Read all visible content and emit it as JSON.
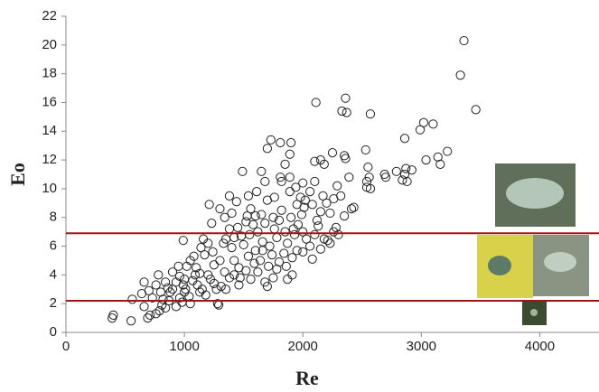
{
  "chart_data": {
    "type": "scatter",
    "x_label": "Re",
    "y_label": "Eo",
    "x": [
      3360,
      3330,
      3460,
      2110,
      2360,
      2330,
      2370,
      2570,
      3020,
      3100,
      2990,
      2860,
      3220,
      3140,
      3160,
      3040,
      1730,
      1700,
      1810,
      1900,
      1650,
      1810,
      1850,
      1890,
      2100,
      2150,
      2180,
      2250,
      2350,
      2360,
      2530,
      2550,
      2560,
      2540,
      2570,
      2540,
      2690,
      2700,
      2790,
      2860,
      2870,
      2920,
      2840,
      2880,
      2390,
      2290,
      2320,
      2410,
      1490,
      1540,
      1610,
      1680,
      1760,
      1890,
      1940,
      1980,
      2010,
      2060,
      2170,
      2200,
      2260,
      2230,
      2120,
      2280,
      2350,
      2430,
      400,
      390,
      550,
      560,
      640,
      690,
      660,
      710,
      760,
      790,
      810,
      840,
      870,
      660,
      760,
      800,
      840,
      780,
      880,
      900,
      930,
      960,
      990,
      1000,
      1040,
      1050,
      980,
      930,
      1010,
      1070,
      1100,
      1130,
      1080,
      1050,
      990,
      1170,
      1200,
      1220,
      1250,
      1270,
      1280,
      1310,
      1340,
      1300,
      1240,
      1200,
      1230,
      1210,
      1300,
      1340,
      1380,
      1400,
      1440,
      1450,
      1380,
      1350,
      1400,
      1420,
      1460,
      1380,
      1470,
      1520,
      1540,
      1500,
      1550,
      1580,
      1600,
      1560,
      1650,
      1620,
      1660,
      1600,
      1640,
      1620,
      1680,
      1710,
      1740,
      1720,
      1780,
      1760,
      1800,
      1820,
      1850,
      1870,
      1840,
      1800,
      1780,
      1860,
      1910,
      1930,
      1960,
      1990,
      1950,
      2000,
      2030,
      2060,
      2000,
      2080,
      2100,
      2130,
      2150,
      2080,
      2180,
      2210,
      2260,
      1910,
      1870,
      1750,
      1290,
      1700,
      1350,
      1150,
      1180,
      1110,
      900,
      950,
      1020,
      1140,
      1250,
      1420,
      1480,
      1520,
      1680,
      1700,
      1750,
      1900,
      1920,
      2020,
      2000,
      2100,
      1890,
      1820,
      1530,
      1420,
      1330,
      1160,
      1090,
      1000,
      860,
      730,
      700,
      820,
      960,
      1130,
      1460,
      1560,
      1590,
      1660,
      1950,
      2150,
      2230,
      2300
    ],
    "values": [
      20.3,
      17.9,
      15.5,
      16,
      16.3,
      15.4,
      15.3,
      15.2,
      14.6,
      14.5,
      14.1,
      13.5,
      12.6,
      12.2,
      11.7,
      12,
      13.4,
      12.8,
      13.2,
      13.2,
      11.2,
      10.8,
      11.7,
      12.4,
      11.9,
      12,
      11.7,
      12.5,
      12.3,
      12.1,
      12.7,
      11.5,
      10.8,
      10.1,
      10,
      10.5,
      11,
      10.8,
      11.2,
      11,
      11.4,
      11.3,
      10.6,
      10.5,
      10.8,
      10.2,
      9.5,
      8.6,
      11.2,
      9.5,
      9.8,
      10.5,
      9.4,
      9.8,
      10.1,
      9.4,
      8.7,
      9.8,
      9.5,
      9,
      9.3,
      8.3,
      7.8,
      7.3,
      8.1,
      8.7,
      1.2,
      1.0,
      0.8,
      2.3,
      2.7,
      1.0,
      1.8,
      1.2,
      1.3,
      1.5,
      1.9,
      1.7,
      2.2,
      3.5,
      3.3,
      2.8,
      3.5,
      4.0,
      2.8,
      3.0,
      3.5,
      3.9,
      3.3,
      2.8,
      2.5,
      2.0,
      2.1,
      1.8,
      3.0,
      3.6,
      4.5,
      4.1,
      5.3,
      5.0,
      6.4,
      5.4,
      4.0,
      3.7,
      3.4,
      3.0,
      2.0,
      3.2,
      4.2,
      5.0,
      5.6,
      6.2,
      7.6,
      8.9,
      8.6,
      8.0,
      9.5,
      8.3,
      9.1,
      7.3,
      7.2,
      6.5,
      5.9,
      5.0,
      4.5,
      3.8,
      3.8,
      4.3,
      5.3,
      6.1,
      6.8,
      7.5,
      8.1,
      8.6,
      8.2,
      7.0,
      6.3,
      5.7,
      5.0,
      4.2,
      3.5,
      4.6,
      5.4,
      6.0,
      6.6,
      7.2,
      7.8,
      8.5,
      7.0,
      6.2,
      5.5,
      4.9,
      4.4,
      4.6,
      5.2,
      6.8,
      7.5,
      8.2,
      8.9,
      7.0,
      6.5,
      6.0,
      5.6,
      5.1,
      6.8,
      7.4,
      8.4,
      8.9,
      6.5,
      6.4,
      7.0,
      4.0,
      3.7,
      3.8,
      1.9,
      3.2,
      3.0,
      3.0,
      2.6,
      3.3,
      4.2,
      4.6,
      4.6,
      5.9,
      4.7,
      4.0,
      6.7,
      7.7,
      7.6,
      9.2,
      8.0,
      8.0,
      7.2,
      9.2,
      10.4,
      10.5,
      10.8,
      10.5,
      8.1,
      6.6,
      6.2,
      6.5,
      4.0,
      3.7,
      3.1,
      2.4,
      2.9,
      2.3,
      2.4,
      2.8,
      3.3,
      3.7,
      4.8,
      5.7,
      5.7,
      5.8,
      6.2,
      6.8
    ],
    "marker_color": "#222222",
    "xlim": [
      0,
      4500
    ],
    "xticks": [
      0,
      1000,
      2000,
      3000,
      4000
    ],
    "ylim": [
      0,
      22
    ],
    "yticks": [
      0,
      2,
      4,
      6,
      8,
      10,
      12,
      14,
      16,
      18,
      20,
      22
    ],
    "reference_lines": [
      {
        "value": 6.9,
        "color": "#a31515"
      },
      {
        "value": 2.2,
        "color": "#a31515"
      }
    ]
  }
}
